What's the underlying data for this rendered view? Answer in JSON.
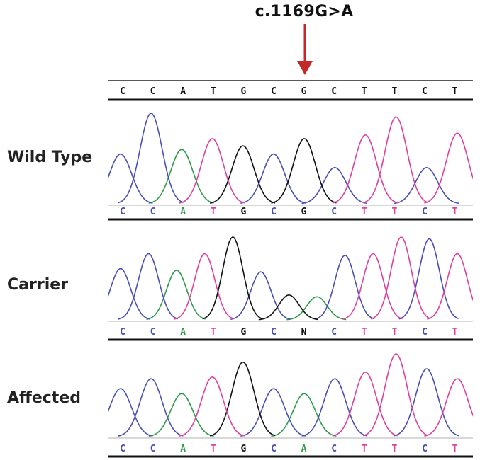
{
  "mutation": {
    "label": "c.1169G>A",
    "arrow_color": "#c62828",
    "arrow_position": 6
  },
  "reference": {
    "bases": [
      "C",
      "C",
      "A",
      "T",
      "G",
      "C",
      "G",
      "C",
      "T",
      "T",
      "C",
      "T"
    ]
  },
  "colors": {
    "A": "#2e9b4a",
    "C": "#4a4fb8",
    "G": "#111111",
    "T": "#e0409a",
    "N": "#111111"
  },
  "samples": [
    {
      "label": "Wild Type",
      "bases": [
        "C",
        "C",
        "A",
        "T",
        "G",
        "C",
        "G",
        "C",
        "T",
        "T",
        "C",
        "T"
      ],
      "peaks": [
        {
          "base": "C",
          "h": 0.55
        },
        {
          "base": "C",
          "h": 1.0
        },
        {
          "base": "A",
          "h": 0.6
        },
        {
          "base": "T",
          "h": 0.72
        },
        {
          "base": "G",
          "h": 0.64
        },
        {
          "base": "C",
          "h": 0.55
        },
        {
          "base": "G",
          "h": 0.72
        },
        {
          "base": "C",
          "h": 0.4
        },
        {
          "base": "T",
          "h": 0.76
        },
        {
          "base": "T",
          "h": 0.96
        },
        {
          "base": "C",
          "h": 0.4
        },
        {
          "base": "T",
          "h": 0.78
        }
      ]
    },
    {
      "label": "Carrier",
      "bases": [
        "C",
        "C",
        "A",
        "T",
        "G",
        "C",
        "N",
        "C",
        "T",
        "T",
        "C",
        "T"
      ],
      "peaks": [
        {
          "base": "C",
          "h": 0.62
        },
        {
          "base": "C",
          "h": 0.8
        },
        {
          "base": "A",
          "h": 0.6
        },
        {
          "base": "T",
          "h": 0.8
        },
        {
          "base": "G",
          "h": 1.0
        },
        {
          "base": "C",
          "h": 0.58
        },
        {
          "base": "G",
          "h": 0.3
        },
        {
          "base": "A",
          "h": 0.28
        },
        {
          "base": "C",
          "h": 0.78
        },
        {
          "base": "T",
          "h": 0.8
        },
        {
          "base": "T",
          "h": 1.0
        },
        {
          "base": "C",
          "h": 0.98
        },
        {
          "base": "T",
          "h": 0.8
        }
      ]
    },
    {
      "label": "Affected",
      "bases": [
        "C",
        "C",
        "A",
        "T",
        "G",
        "C",
        "A",
        "C",
        "T",
        "T",
        "C",
        "T"
      ],
      "peaks": [
        {
          "base": "C",
          "h": 0.58
        },
        {
          "base": "C",
          "h": 0.7
        },
        {
          "base": "A",
          "h": 0.52
        },
        {
          "base": "T",
          "h": 0.72
        },
        {
          "base": "G",
          "h": 0.9
        },
        {
          "base": "C",
          "h": 0.58
        },
        {
          "base": "A",
          "h": 0.52
        },
        {
          "base": "C",
          "h": 0.7
        },
        {
          "base": "T",
          "h": 0.78
        },
        {
          "base": "T",
          "h": 1.0
        },
        {
          "base": "C",
          "h": 0.82
        },
        {
          "base": "T",
          "h": 0.7
        }
      ]
    }
  ]
}
